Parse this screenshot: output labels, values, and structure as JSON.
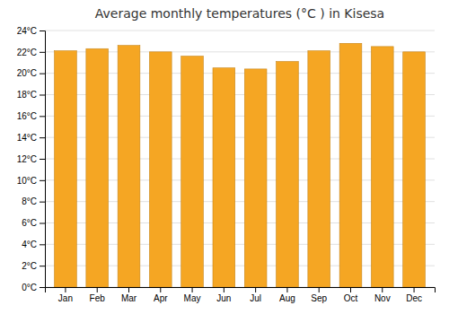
{
  "chart_data": {
    "type": "bar",
    "title": "Average monthly temperatures (°C ) in Kisesa",
    "categories": [
      "Jan",
      "Feb",
      "Mar",
      "Apr",
      "May",
      "Jun",
      "Jul",
      "Aug",
      "Sep",
      "Oct",
      "Nov",
      "Dec"
    ],
    "values": [
      22.1,
      22.3,
      22.6,
      22.0,
      21.6,
      20.5,
      20.4,
      21.1,
      22.1,
      22.8,
      22.5,
      22.0
    ],
    "color": "#F5A623",
    "ylim": [
      0,
      24
    ],
    "yticks": [
      {
        "value": 0,
        "label": "0°C"
      },
      {
        "value": 2,
        "label": "2°C"
      },
      {
        "value": 4,
        "label": "4°C"
      },
      {
        "value": 6,
        "label": "6°C"
      },
      {
        "value": 8,
        "label": "8°C"
      },
      {
        "value": 10,
        "label": "10°C"
      },
      {
        "value": 12,
        "label": "12°C"
      },
      {
        "value": 14,
        "label": "14°C"
      },
      {
        "value": 16,
        "label": "16°C"
      },
      {
        "value": 18,
        "label": "18°C"
      },
      {
        "value": 20,
        "label": "20°C"
      },
      {
        "value": 22,
        "label": "22°C"
      },
      {
        "value": 24,
        "label": "24°C"
      }
    ],
    "grid": true
  }
}
